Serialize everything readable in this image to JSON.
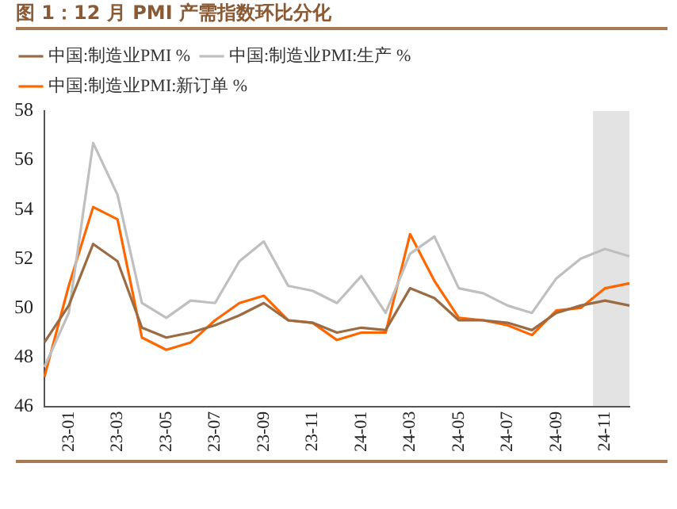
{
  "chart_data": {
    "type": "line",
    "title": "图 1：12 月 PMI 产需指数环比分化",
    "categories": [
      null,
      "23-01",
      null,
      "23-03",
      null,
      "23-05",
      null,
      "23-07",
      null,
      "23-09",
      null,
      "23-11",
      null,
      "24-01",
      null,
      "24-03",
      null,
      "24-05",
      null,
      "24-07",
      null,
      "24-09",
      null,
      "24-11",
      null
    ],
    "series": [
      {
        "name": "中国:制造业PMI %",
        "color": "#9b6b43",
        "values": [
          48.6,
          50.1,
          52.6,
          51.9,
          49.2,
          48.8,
          49.0,
          49.3,
          49.7,
          50.2,
          49.5,
          49.4,
          49.0,
          49.2,
          49.1,
          50.8,
          50.4,
          49.5,
          49.5,
          49.4,
          49.1,
          49.8,
          50.1,
          50.3,
          50.1
        ]
      },
      {
        "name": "中国:制造业PMI:生产 %",
        "color": "#bfbfbf",
        "values": [
          47.6,
          49.8,
          56.7,
          54.6,
          50.2,
          49.6,
          50.3,
          50.2,
          51.9,
          52.7,
          50.9,
          50.7,
          50.2,
          51.3,
          49.8,
          52.2,
          52.9,
          50.8,
          50.6,
          50.1,
          49.8,
          51.2,
          52.0,
          52.4,
          52.1
        ]
      },
      {
        "name": "中国:制造业PMI:新订单 %",
        "color": "#ff6600",
        "values": [
          47.2,
          50.9,
          54.1,
          53.6,
          48.8,
          48.3,
          48.6,
          49.5,
          50.2,
          50.5,
          49.5,
          49.4,
          48.7,
          49.0,
          49.0,
          53.0,
          51.1,
          49.6,
          49.5,
          49.3,
          48.9,
          49.9,
          50.0,
          50.8,
          51.0
        ]
      }
    ],
    "ylim": [
      46,
      58
    ],
    "yticks": [
      46,
      48,
      50,
      52,
      54,
      56,
      58
    ],
    "grid": false,
    "legend": "top",
    "marker": "none",
    "line_style": "solid"
  }
}
